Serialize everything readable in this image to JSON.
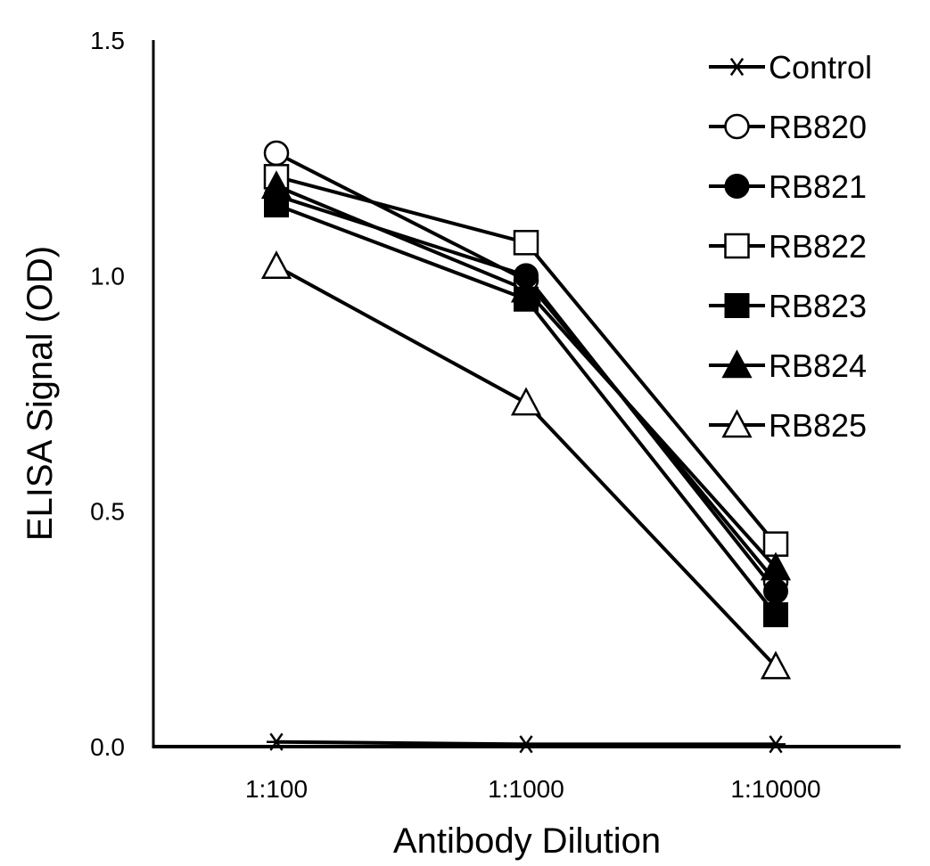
{
  "chart_data": {
    "type": "line",
    "title": "",
    "xlabel": "Antibody Dilution",
    "ylabel": "ELISA Signal (OD)",
    "categories": [
      "1:100",
      "1:1000",
      "1:10000"
    ],
    "ylim": [
      0,
      1.5
    ],
    "yticks": [
      0.0,
      0.5,
      1.0,
      1.5
    ],
    "ytick_labels": [
      "0.0",
      "0.5",
      "1.0",
      "1.5"
    ],
    "grid": false,
    "legend_position": "top-right",
    "series": [
      {
        "name": "Control",
        "marker": "asterisk",
        "values": [
          0.01,
          0.005,
          0.005
        ]
      },
      {
        "name": "RB820",
        "marker": "circle-open",
        "values": [
          1.26,
          0.99,
          0.35
        ]
      },
      {
        "name": "RB821",
        "marker": "circle-filled",
        "values": [
          1.17,
          1.0,
          0.33
        ]
      },
      {
        "name": "RB822",
        "marker": "square-open",
        "values": [
          1.21,
          1.07,
          0.43
        ]
      },
      {
        "name": "RB823",
        "marker": "square-filled",
        "values": [
          1.15,
          0.95,
          0.28
        ]
      },
      {
        "name": "RB824",
        "marker": "triangle-filled",
        "values": [
          1.19,
          0.97,
          0.38
        ]
      },
      {
        "name": "RB825",
        "marker": "triangle-open",
        "values": [
          1.02,
          0.73,
          0.17
        ]
      }
    ],
    "line_color": "#000000"
  }
}
